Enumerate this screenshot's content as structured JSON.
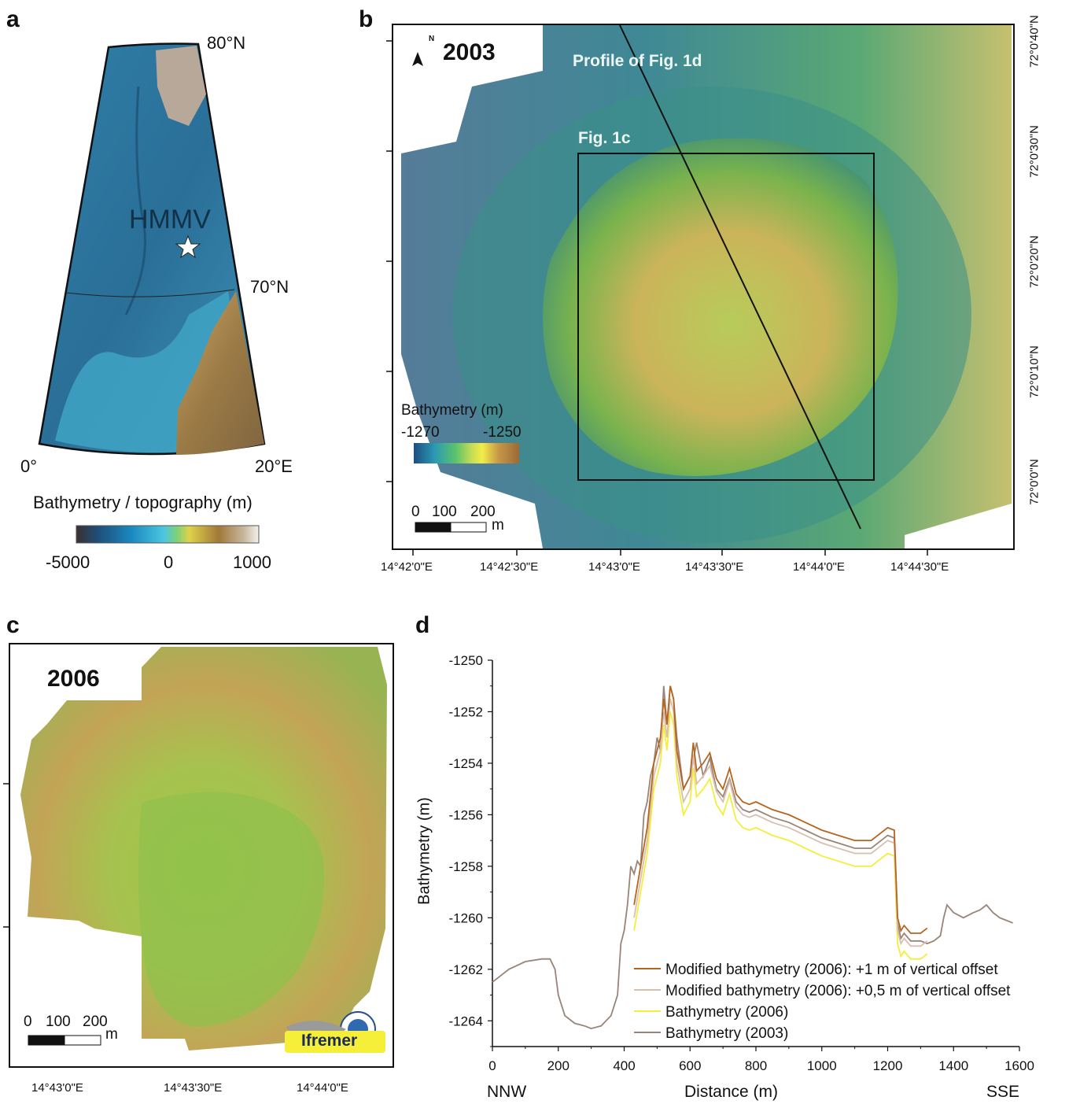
{
  "panel_a": {
    "letter": "a",
    "lat_top": "80°N",
    "lat_mid": "70°N",
    "lon_left": "0°",
    "lon_right": "20°E",
    "site_label": "HMMV",
    "colorbar_title": "Bathymetry / topography (m)",
    "colorbar_ticks": [
      "-5000",
      "0",
      "1000"
    ]
  },
  "panel_b": {
    "letter": "b",
    "year": "2003",
    "north_label": "N",
    "profile_label": "Profile of Fig. 1d",
    "box_label": "Fig. 1c",
    "colorbar_title": "Bathymetry (m)",
    "colorbar_ticks": [
      "-1270",
      "-1250"
    ],
    "scale_ticks": [
      "0",
      "100",
      "200"
    ],
    "scale_unit": "m",
    "lon_ticks": [
      "14°42'0\"E",
      "14°42'30\"E",
      "14°43'0\"E",
      "14°43'30\"E",
      "14°44'0\"E",
      "14°44'30\"E"
    ],
    "lat_ticks": [
      "72°0'40\"N",
      "72°0'30\"N",
      "72°0'20\"N",
      "72°0'10\"N",
      "72°0'0\"N"
    ]
  },
  "panel_c": {
    "letter": "c",
    "year": "2006",
    "scale_ticks": [
      "0",
      "100",
      "200"
    ],
    "scale_unit": "m",
    "logo_text": "Ifremer",
    "lon_ticks": [
      "14°43'0\"E",
      "14°43'30\"E",
      "14°44'0\"E"
    ]
  },
  "panel_d": {
    "letter": "d",
    "chart_data": {
      "type": "line",
      "xlabel": "Distance (m)",
      "ylabel": "Bathymetry (m)",
      "x_left_label": "NNW",
      "x_right_label": "SSE",
      "xlim": [
        0,
        1600
      ],
      "ylim": [
        -1265,
        -1250
      ],
      "x_ticks": [
        0,
        200,
        400,
        600,
        800,
        1000,
        1200,
        1400,
        1600
      ],
      "y_ticks": [
        -1250,
        -1252,
        -1254,
        -1256,
        -1258,
        -1260,
        -1262,
        -1264
      ],
      "legend_position": "bottom-right",
      "series": [
        {
          "name": "Modified bathymetry (2006): +1 m of vertical offset",
          "color": "#b5651d",
          "x": [
            430,
            450,
            470,
            490,
            510,
            520,
            530,
            540,
            550,
            560,
            580,
            600,
            610,
            620,
            640,
            660,
            680,
            700,
            720,
            740,
            760,
            780,
            800,
            850,
            900,
            950,
            1000,
            1050,
            1100,
            1150,
            1200,
            1220,
            1230,
            1240,
            1250,
            1270,
            1300,
            1320
          ],
          "y": [
            -1259.5,
            -1258.0,
            -1256.5,
            -1254.0,
            -1253.0,
            -1251.5,
            -1252.5,
            -1251.0,
            -1251.5,
            -1253.5,
            -1255.0,
            -1254.5,
            -1253.2,
            -1254.3,
            -1254.0,
            -1253.6,
            -1254.6,
            -1255.0,
            -1254.2,
            -1255.2,
            -1255.5,
            -1255.6,
            -1255.5,
            -1255.8,
            -1256.0,
            -1256.3,
            -1256.6,
            -1256.8,
            -1257.0,
            -1257.0,
            -1256.5,
            -1256.6,
            -1260.0,
            -1260.5,
            -1260.3,
            -1260.6,
            -1260.6,
            -1260.4
          ]
        },
        {
          "name": "Modified bathymetry (2006): +0,5 m of vertical offset",
          "color": "#d8bfb0",
          "x": [
            430,
            450,
            470,
            490,
            510,
            520,
            530,
            540,
            550,
            560,
            580,
            600,
            610,
            620,
            640,
            660,
            680,
            700,
            720,
            740,
            760,
            780,
            800,
            850,
            900,
            950,
            1000,
            1050,
            1100,
            1150,
            1200,
            1220,
            1230,
            1240,
            1250,
            1270,
            1300,
            1320
          ],
          "y": [
            -1260.0,
            -1258.5,
            -1257.0,
            -1254.5,
            -1253.5,
            -1252.0,
            -1253.0,
            -1251.5,
            -1252.0,
            -1254.0,
            -1255.5,
            -1255.0,
            -1253.7,
            -1254.8,
            -1254.5,
            -1254.1,
            -1255.1,
            -1255.5,
            -1254.7,
            -1255.7,
            -1256.0,
            -1256.1,
            -1256.0,
            -1256.3,
            -1256.5,
            -1256.8,
            -1257.1,
            -1257.3,
            -1257.5,
            -1257.5,
            -1257.0,
            -1257.1,
            -1260.5,
            -1261.0,
            -1260.8,
            -1261.1,
            -1261.1,
            -1260.9
          ]
        },
        {
          "name": "Bathymetry (2006)",
          "color": "#f4ee3a",
          "x": [
            430,
            450,
            470,
            490,
            510,
            520,
            530,
            540,
            550,
            560,
            580,
            600,
            610,
            620,
            640,
            660,
            680,
            700,
            720,
            740,
            760,
            780,
            800,
            850,
            900,
            950,
            1000,
            1050,
            1100,
            1150,
            1200,
            1220,
            1230,
            1240,
            1250,
            1270,
            1300,
            1320
          ],
          "y": [
            -1260.5,
            -1259.0,
            -1257.5,
            -1255.0,
            -1254.0,
            -1252.5,
            -1253.5,
            -1252.0,
            -1252.5,
            -1254.5,
            -1256.0,
            -1255.5,
            -1254.2,
            -1255.3,
            -1255.0,
            -1254.6,
            -1255.6,
            -1256.0,
            -1255.2,
            -1256.2,
            -1256.5,
            -1256.6,
            -1256.5,
            -1256.8,
            -1257.0,
            -1257.3,
            -1257.6,
            -1257.8,
            -1258.0,
            -1258.0,
            -1257.5,
            -1257.6,
            -1261.0,
            -1261.5,
            -1261.3,
            -1261.6,
            -1261.6,
            -1261.4
          ]
        },
        {
          "name": "Bathymetry (2003)",
          "color": "#9a8478",
          "x": [
            0,
            20,
            50,
            100,
            150,
            175,
            190,
            200,
            220,
            250,
            280,
            300,
            330,
            360,
            380,
            390,
            400,
            410,
            420,
            430,
            440,
            450,
            460,
            470,
            480,
            490,
            500,
            510,
            520,
            530,
            540,
            550,
            560,
            580,
            600,
            620,
            640,
            660,
            680,
            700,
            720,
            740,
            760,
            780,
            800,
            850,
            900,
            950,
            1000,
            1050,
            1100,
            1150,
            1200,
            1220,
            1230,
            1240,
            1250,
            1270,
            1300,
            1320,
            1340,
            1360,
            1370,
            1380,
            1400,
            1430,
            1460,
            1480,
            1500,
            1520,
            1540,
            1560,
            1580
          ],
          "y": [
            -1262.5,
            -1262.3,
            -1262.0,
            -1261.7,
            -1261.6,
            -1261.6,
            -1262.0,
            -1263.0,
            -1263.8,
            -1264.1,
            -1264.2,
            -1264.3,
            -1264.2,
            -1263.8,
            -1263.0,
            -1261.0,
            -1260.5,
            -1259.5,
            -1258.0,
            -1258.3,
            -1257.8,
            -1258.0,
            -1256.0,
            -1255.5,
            -1254.5,
            -1254.0,
            -1253.0,
            -1253.5,
            -1251.0,
            -1252.5,
            -1251.0,
            -1251.5,
            -1253.0,
            -1255.0,
            -1254.5,
            -1253.2,
            -1254.5,
            -1253.8,
            -1255.0,
            -1255.3,
            -1254.6,
            -1255.5,
            -1255.8,
            -1255.9,
            -1255.8,
            -1256.1,
            -1256.3,
            -1256.6,
            -1256.9,
            -1257.1,
            -1257.3,
            -1257.3,
            -1256.8,
            -1256.9,
            -1260.2,
            -1260.8,
            -1260.6,
            -1260.9,
            -1260.9,
            -1261.0,
            -1260.9,
            -1260.7,
            -1260.0,
            -1259.5,
            -1259.8,
            -1260.0,
            -1259.8,
            -1259.7,
            -1259.5,
            -1259.8,
            -1260.0,
            -1260.1,
            -1260.2
          ]
        }
      ]
    }
  }
}
